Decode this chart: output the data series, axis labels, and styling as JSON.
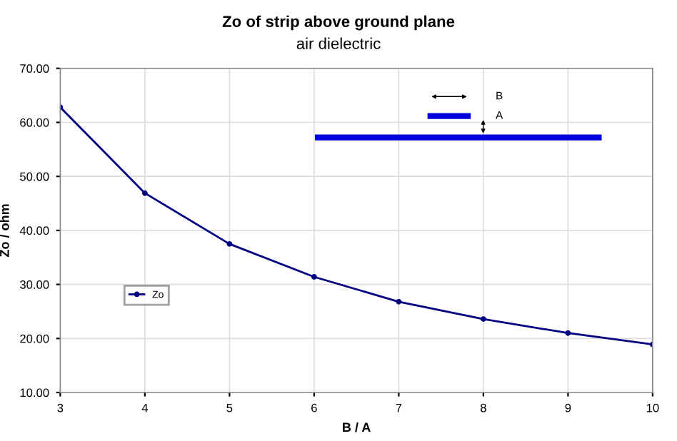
{
  "chart_data": {
    "type": "line",
    "title": "Zo of strip above ground plane",
    "subtitle": "air dielectric",
    "xlabel": "B / A",
    "ylabel": "Zo / ohm",
    "x": [
      3,
      4,
      5,
      6,
      7,
      8,
      9,
      10
    ],
    "series": [
      {
        "name": "Zo",
        "color": "#000080",
        "values": [
          62.8,
          46.9,
          37.5,
          31.4,
          26.8,
          23.6,
          21.0,
          18.9
        ]
      }
    ],
    "xlim": [
      3,
      10
    ],
    "xticks": [
      3,
      4,
      5,
      6,
      7,
      8,
      9,
      10
    ],
    "ylim": [
      10,
      70
    ],
    "yticks": [
      {
        "value": 10,
        "label": "10.00"
      },
      {
        "value": 20,
        "label": "20.00"
      },
      {
        "value": 30,
        "label": "30.00"
      },
      {
        "value": 40,
        "label": "40.00"
      },
      {
        "value": 50,
        "label": "50.00"
      },
      {
        "value": 60,
        "label": "60.00"
      },
      {
        "value": 70,
        "label": "70.00"
      }
    ],
    "grid": true,
    "legend": "left",
    "marker": "circle",
    "line_style": "solid",
    "annotations": [
      "B",
      "A"
    ]
  }
}
